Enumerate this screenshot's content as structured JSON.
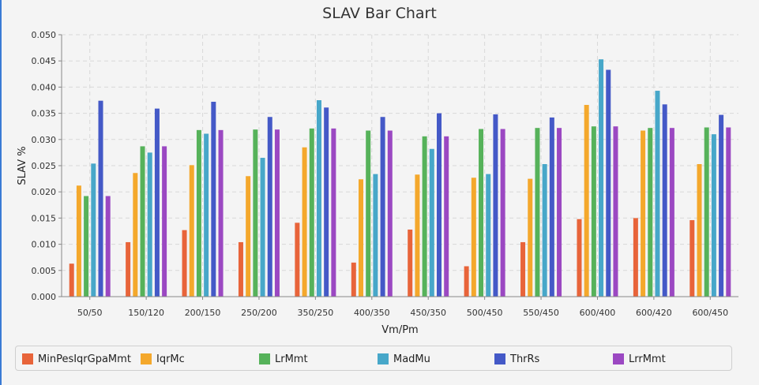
{
  "chart_data": {
    "type": "bar",
    "title": "SLAV Bar Chart",
    "xlabel": "Vm/Pm",
    "ylabel": "SLAV %",
    "ylim": [
      0,
      0.05
    ],
    "yticks": [
      "0.000",
      "0.005",
      "0.010",
      "0.015",
      "0.020",
      "0.025",
      "0.030",
      "0.035",
      "0.040",
      "0.045",
      "0.050"
    ],
    "grid": true,
    "legend_position": "bottom",
    "categories": [
      "50/50",
      "150/120",
      "200/150",
      "250/200",
      "350/250",
      "400/350",
      "450/350",
      "500/450",
      "550/450",
      "600/400",
      "600/420",
      "600/450"
    ],
    "series": [
      {
        "name": "MinPesIqrGpaMmt",
        "color": "#e8643a",
        "values": [
          0.0063,
          0.0104,
          0.0127,
          0.0104,
          0.0141,
          0.0065,
          0.0128,
          0.0058,
          0.0104,
          0.0148,
          0.015,
          0.0146
        ]
      },
      {
        "name": "IqrMc",
        "color": "#f4a82c",
        "values": [
          0.0212,
          0.0236,
          0.0251,
          0.023,
          0.0285,
          0.0224,
          0.0233,
          0.0227,
          0.0225,
          0.0366,
          0.0317,
          0.0253
        ]
      },
      {
        "name": "LrMmt",
        "color": "#56b25a",
        "values": [
          0.0192,
          0.0287,
          0.0318,
          0.0319,
          0.0321,
          0.0317,
          0.0306,
          0.032,
          0.0322,
          0.0325,
          0.0322,
          0.0323
        ]
      },
      {
        "name": "MadMu",
        "color": "#47a7c9",
        "values": [
          0.0254,
          0.0275,
          0.0311,
          0.0265,
          0.0375,
          0.0234,
          0.0282,
          0.0234,
          0.0253,
          0.0453,
          0.0393,
          0.031
        ]
      },
      {
        "name": "ThrRs",
        "color": "#4459c7",
        "values": [
          0.0374,
          0.0359,
          0.0372,
          0.0343,
          0.0361,
          0.0343,
          0.035,
          0.0348,
          0.0342,
          0.0433,
          0.0367,
          0.0347
        ]
      },
      {
        "name": "LrrMmt",
        "color": "#9b48c2",
        "values": [
          0.0192,
          0.0287,
          0.0318,
          0.0319,
          0.0321,
          0.0317,
          0.0306,
          0.032,
          0.0322,
          0.0325,
          0.0322,
          0.0323
        ]
      }
    ]
  }
}
